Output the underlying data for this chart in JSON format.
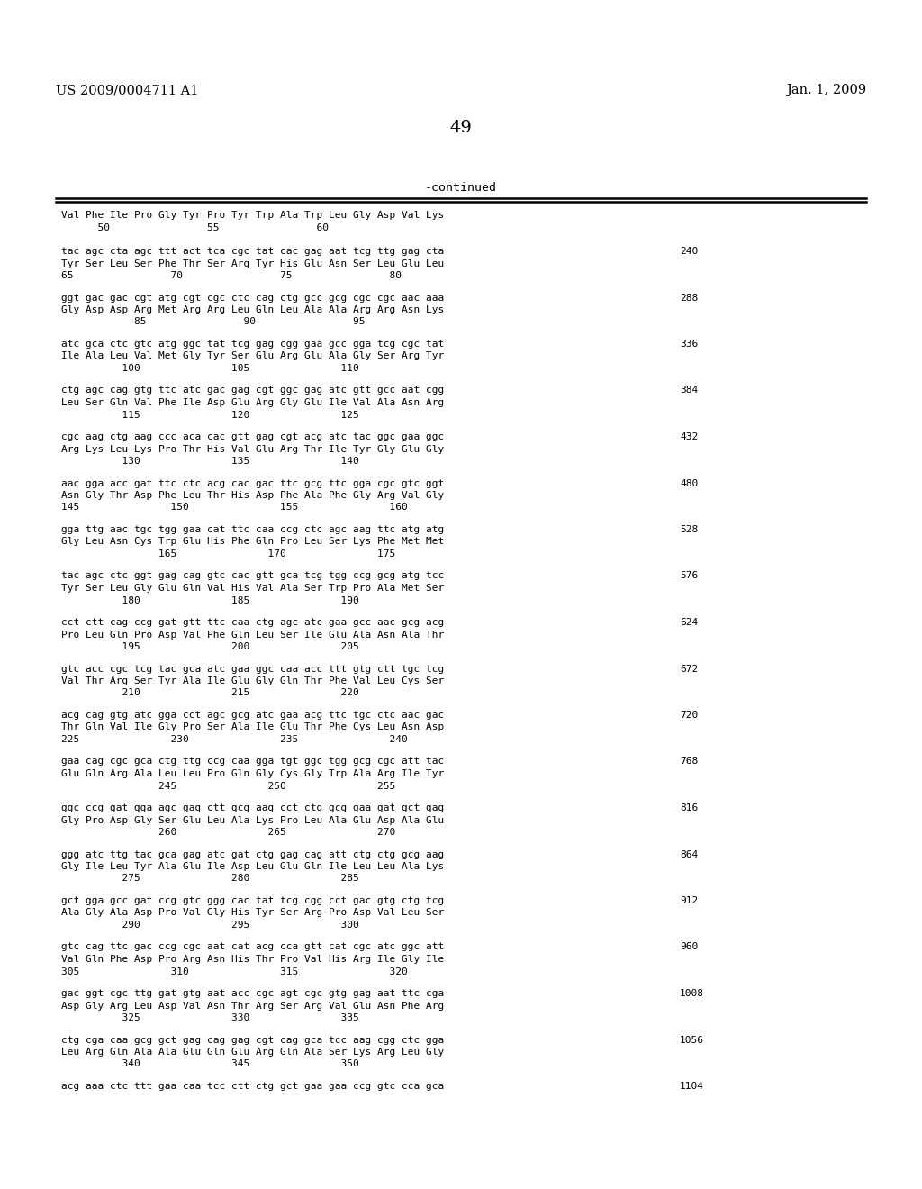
{
  "title_left": "US 2009/0004711 A1",
  "title_right": "Jan. 1, 2009",
  "page_number": "49",
  "continued_label": "-continued",
  "background_color": "#ffffff",
  "text_color": "#000000",
  "seq_lines": [
    {
      "dna": "",
      "aa": "Val Phe Ile Pro Gly Tyr Pro Tyr Trp Ala Trp Leu Gly Asp Val Lys",
      "num_line": "      50                55                60",
      "right_num": ""
    },
    {
      "dna": "tac agc cta agc ttt act tca cgc tat cac gag aat tcg ttg gag cta",
      "aa": "Tyr Ser Leu Ser Phe Thr Ser Arg Tyr His Glu Asn Ser Leu Glu Leu",
      "num_line": "65                70                75                80",
      "right_num": "240"
    },
    {
      "dna": "ggt gac gac cgt atg cgt cgc ctc cag ctg gcc gcg cgc cgc aac aaa",
      "aa": "Gly Asp Asp Arg Met Arg Arg Leu Gln Leu Ala Ala Arg Arg Asn Lys",
      "num_line": "            85                90                95",
      "right_num": "288"
    },
    {
      "dna": "atc gca ctc gtc atg ggc tat tcg gag cgg gaa gcc gga tcg cgc tat",
      "aa": "Ile Ala Leu Val Met Gly Tyr Ser Glu Arg Glu Ala Gly Ser Arg Tyr",
      "num_line": "          100               105               110",
      "right_num": "336"
    },
    {
      "dna": "ctg agc cag gtg ttc atc gac gag cgt ggc gag atc gtt gcc aat cgg",
      "aa": "Leu Ser Gln Val Phe Ile Asp Glu Arg Gly Glu Ile Val Ala Asn Arg",
      "num_line": "          115               120               125",
      "right_num": "384"
    },
    {
      "dna": "cgc aag ctg aag ccc aca cac gtt gag cgt acg atc tac ggc gaa ggc",
      "aa": "Arg Lys Leu Lys Pro Thr His Val Glu Arg Thr Ile Tyr Gly Glu Gly",
      "num_line": "          130               135               140",
      "right_num": "432"
    },
    {
      "dna": "aac gga acc gat ttc ctc acg cac gac ttc gcg ttc gga cgc gtc ggt",
      "aa": "Asn Gly Thr Asp Phe Leu Thr His Asp Phe Ala Phe Gly Arg Val Gly",
      "num_line": "145               150               155               160",
      "right_num": "480"
    },
    {
      "dna": "gga ttg aac tgc tgg gaa cat ttc caa ccg ctc agc aag ttc atg atg",
      "aa": "Gly Leu Asn Cys Trp Glu His Phe Gln Pro Leu Ser Lys Phe Met Met",
      "num_line": "                165               170               175",
      "right_num": "528"
    },
    {
      "dna": "tac agc ctc ggt gag cag gtc cac gtt gca tcg tgg ccg gcg atg tcc",
      "aa": "Tyr Ser Leu Gly Glu Gln Val His Val Ala Ser Trp Pro Ala Met Ser",
      "num_line": "          180               185               190",
      "right_num": "576"
    },
    {
      "dna": "cct ctt cag ccg gat gtt ttc caa ctg agc atc gaa gcc aac gcg acg",
      "aa": "Pro Leu Gln Pro Asp Val Phe Gln Leu Ser Ile Glu Ala Asn Ala Thr",
      "num_line": "          195               200               205",
      "right_num": "624"
    },
    {
      "dna": "gtc acc cgc tcg tac gca atc gaa ggc caa acc ttt gtg ctt tgc tcg",
      "aa": "Val Thr Arg Ser Tyr Ala Ile Glu Gly Gln Thr Phe Val Leu Cys Ser",
      "num_line": "          210               215               220",
      "right_num": "672"
    },
    {
      "dna": "acg cag gtg atc gga cct agc gcg atc gaa acg ttc tgc ctc aac gac",
      "aa": "Thr Gln Val Ile Gly Pro Ser Ala Ile Glu Thr Phe Cys Leu Asn Asp",
      "num_line": "225               230               235               240",
      "right_num": "720"
    },
    {
      "dna": "gaa cag cgc gca ctg ttg ccg caa gga tgt ggc tgg gcg cgc att tac",
      "aa": "Glu Gln Arg Ala Leu Leu Pro Gln Gly Cys Gly Trp Ala Arg Ile Tyr",
      "num_line": "                245               250               255",
      "right_num": "768"
    },
    {
      "dna": "ggc ccg gat gga agc gag ctt gcg aag cct ctg gcg gaa gat gct gag",
      "aa": "Gly Pro Asp Gly Ser Glu Leu Ala Lys Pro Leu Ala Glu Asp Ala Glu",
      "num_line": "                260               265               270",
      "right_num": "816"
    },
    {
      "dna": "ggg atc ttg tac gca gag atc gat ctg gag cag att ctg ctg gcg aag",
      "aa": "Gly Ile Leu Tyr Ala Glu Ile Asp Leu Glu Gln Ile Leu Leu Ala Lys",
      "num_line": "          275               280               285",
      "right_num": "864"
    },
    {
      "dna": "gct gga gcc gat ccg gtc ggg cac tat tcg cgg cct gac gtg ctg tcg",
      "aa": "Ala Gly Ala Asp Pro Val Gly His Tyr Ser Arg Pro Asp Val Leu Ser",
      "num_line": "          290               295               300",
      "right_num": "912"
    },
    {
      "dna": "gtc cag ttc gac ccg cgc aat cat acg cca gtt cat cgc atc ggc att",
      "aa": "Val Gln Phe Asp Pro Arg Asn His Thr Pro Val His Arg Ile Gly Ile",
      "num_line": "305               310               315               320",
      "right_num": "960"
    },
    {
      "dna": "gac ggt cgc ttg gat gtg aat acc cgc agt cgc gtg gag aat ttc cga",
      "aa": "Asp Gly Arg Leu Asp Val Asn Thr Arg Ser Arg Val Glu Asn Phe Arg",
      "num_line": "          325               330               335",
      "right_num": "1008"
    },
    {
      "dna": "ctg cga caa gcg gct gag cag gag cgt cag gca tcc aag cgg ctc gga",
      "aa": "Leu Arg Gln Ala Ala Glu Gln Glu Arg Gln Ala Ser Lys Arg Leu Gly",
      "num_line": "          340               345               350",
      "right_num": "1056"
    },
    {
      "dna": "acg aaa ctc ttt gaa caa tcc ctt ctg gct gaa gaa ccg gtc cca gca",
      "aa": "",
      "num_line": "",
      "right_num": "1104"
    }
  ]
}
